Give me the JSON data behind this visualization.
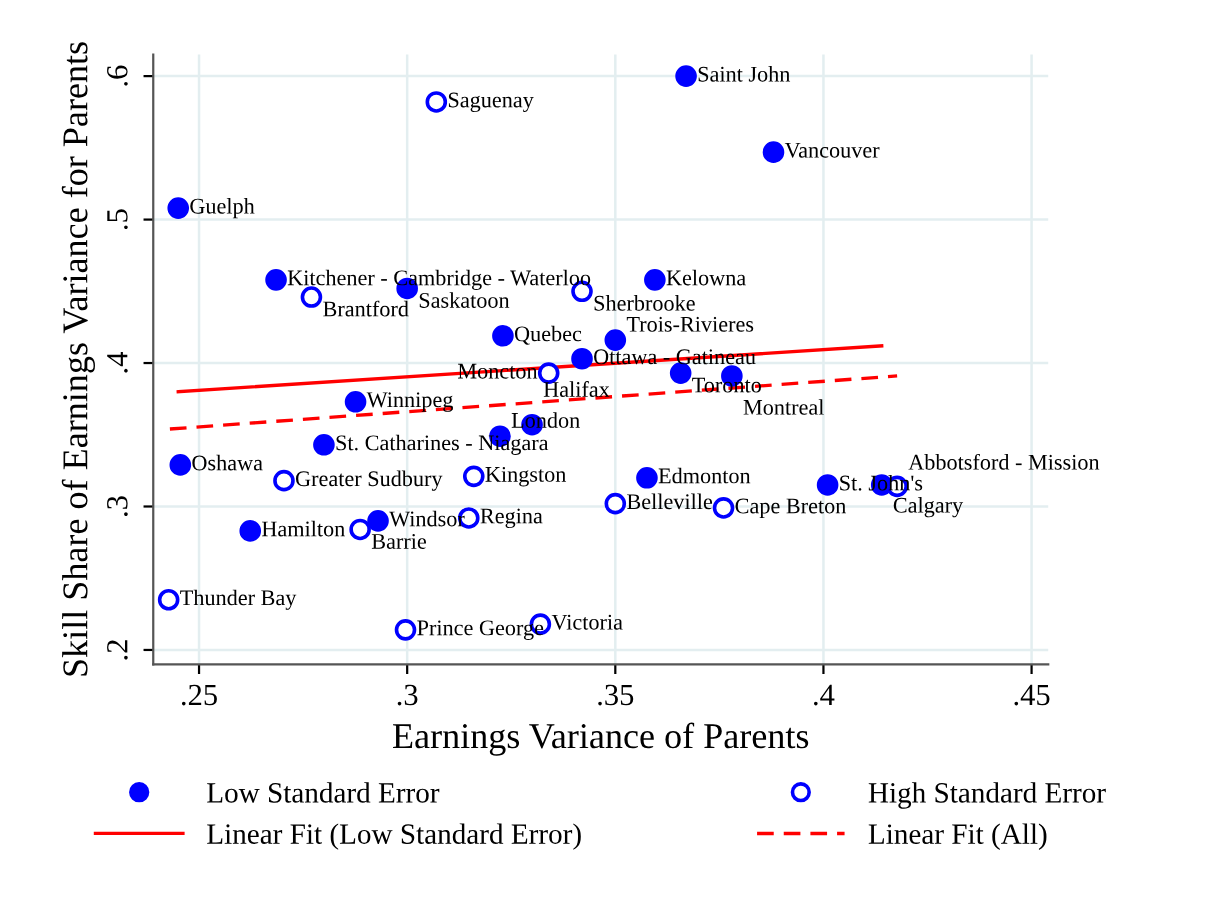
{
  "chart_data": {
    "type": "scatter",
    "xlabel": "Earnings Variance of Parents",
    "ylabel": "Skill Share of Earnings Variance for Parents",
    "xlim": [
      0.239,
      0.454
    ],
    "ylim": [
      0.19,
      0.615
    ],
    "xticks": [
      {
        "value": 0.25,
        "label": ".25"
      },
      {
        "value": 0.3,
        "label": ".3"
      },
      {
        "value": 0.35,
        "label": ".35"
      },
      {
        "value": 0.4,
        "label": ".4"
      },
      {
        "value": 0.45,
        "label": ".45"
      }
    ],
    "yticks": [
      {
        "value": 0.2,
        "label": ".2"
      },
      {
        "value": 0.3,
        "label": ".3"
      },
      {
        "value": 0.4,
        "label": ".4"
      },
      {
        "value": 0.5,
        "label": ".5"
      },
      {
        "value": 0.6,
        "label": ".6"
      }
    ],
    "grid": true,
    "legend": "bottom",
    "series": [
      {
        "name": "Low Standard Error",
        "marker": "circle",
        "color": "#0000ff",
        "x": [
          0.245,
          0.2685,
          0.3,
          0.323,
          0.342,
          0.3595,
          0.35,
          0.367,
          0.388,
          0.3657,
          0.378,
          0.3576,
          0.401,
          0.414,
          0.2876,
          0.28,
          0.3223,
          0.33,
          0.2455,
          0.2623,
          0.293
        ],
        "values": [
          0.508,
          0.458,
          0.452,
          0.419,
          0.403,
          0.458,
          0.416,
          0.6,
          0.547,
          0.393,
          0.391,
          0.32,
          0.315,
          0.315,
          0.373,
          0.343,
          0.349,
          0.357,
          0.329,
          0.283,
          0.29
        ]
      },
      {
        "name": "High Standard Error",
        "marker": "open circle",
        "color": "#0000ff",
        "x": [
          0.307,
          0.277,
          0.334,
          0.342,
          0.35,
          0.376,
          0.4177,
          0.2704,
          0.316,
          0.2887,
          0.3148,
          0.2427,
          0.2996,
          0.332
        ],
        "values": [
          0.582,
          0.446,
          0.393,
          0.45,
          0.302,
          0.299,
          0.314,
          0.318,
          0.321,
          0.284,
          0.292,
          0.235,
          0.214,
          0.218
        ]
      },
      {
        "name": "Linear Fit (Low Standard Error)",
        "type": "line",
        "line_style": "solid",
        "color": "#ff0000",
        "x": [
          0.245,
          0.414
        ],
        "values": [
          0.38,
          0.412
        ]
      },
      {
        "name": "Linear Fit (All)",
        "type": "line",
        "line_style": "dashed",
        "color": "#ff0000",
        "x": [
          0.243,
          0.4177
        ],
        "values": [
          0.354,
          0.391
        ]
      }
    ],
    "annotations": [
      {
        "text": "Guelph",
        "x": 0.245,
        "y": 0.508
      },
      {
        "text": "Kitchener - Cambridge - Waterloo",
        "x": 0.2685,
        "y": 0.458
      },
      {
        "text": "Saskatoon",
        "x": 0.3,
        "y": 0.452
      },
      {
        "text": "Quebec",
        "x": 0.323,
        "y": 0.419
      },
      {
        "text": "Ottawa - Gatineau",
        "x": 0.342,
        "y": 0.403
      },
      {
        "text": "Kelowna",
        "x": 0.3595,
        "y": 0.458
      },
      {
        "text": "Trois-Rivieres",
        "x": 0.35,
        "y": 0.416
      },
      {
        "text": "Saint John",
        "x": 0.367,
        "y": 0.6
      },
      {
        "text": "Vancouver",
        "x": 0.388,
        "y": 0.547
      },
      {
        "text": "Toronto",
        "x": 0.3657,
        "y": 0.393
      },
      {
        "text": "Montreal",
        "x": 0.378,
        "y": 0.391
      },
      {
        "text": "Edmonton",
        "x": 0.3576,
        "y": 0.32
      },
      {
        "text": "St. John's",
        "x": 0.401,
        "y": 0.315
      },
      {
        "text": "Calgary",
        "x": 0.414,
        "y": 0.315
      },
      {
        "text": "Winnipeg",
        "x": 0.2876,
        "y": 0.373
      },
      {
        "text": "St. Catharines - Niagara",
        "x": 0.28,
        "y": 0.343
      },
      {
        "text": "London",
        "x": 0.3223,
        "y": 0.349
      },
      {
        "text": "Halifax",
        "x": 0.33,
        "y": 0.357
      },
      {
        "text": "Oshawa",
        "x": 0.2455,
        "y": 0.329
      },
      {
        "text": "Hamilton",
        "x": 0.2623,
        "y": 0.283
      },
      {
        "text": "Windsor",
        "x": 0.293,
        "y": 0.29
      },
      {
        "text": "Saguenay",
        "x": 0.307,
        "y": 0.582
      },
      {
        "text": "Brantford",
        "x": 0.277,
        "y": 0.446
      },
      {
        "text": "Moncton",
        "x": 0.334,
        "y": 0.393
      },
      {
        "text": "Sherbrooke",
        "x": 0.342,
        "y": 0.45
      },
      {
        "text": "Belleville",
        "x": 0.35,
        "y": 0.302
      },
      {
        "text": "Cape Breton",
        "x": 0.376,
        "y": 0.299
      },
      {
        "text": "Abbotsford - Mission",
        "x": 0.4177,
        "y": 0.314
      },
      {
        "text": "Greater Sudbury",
        "x": 0.2704,
        "y": 0.318
      },
      {
        "text": "Kingston",
        "x": 0.316,
        "y": 0.321
      },
      {
        "text": "Barrie",
        "x": 0.2887,
        "y": 0.284
      },
      {
        "text": "Regina",
        "x": 0.3148,
        "y": 0.292
      },
      {
        "text": "Thunder Bay",
        "x": 0.2427,
        "y": 0.235
      },
      {
        "text": "Prince George",
        "x": 0.2996,
        "y": 0.214
      },
      {
        "text": "Victoria",
        "x": 0.332,
        "y": 0.218
      }
    ]
  }
}
